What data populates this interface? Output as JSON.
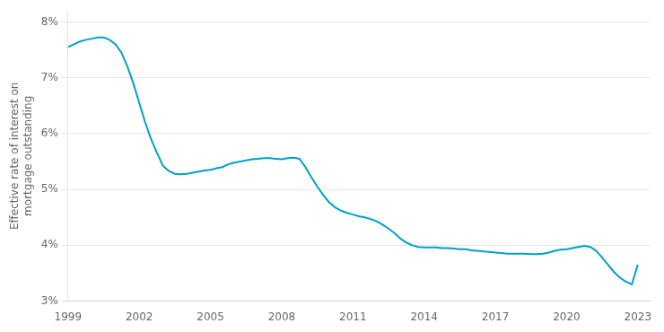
{
  "chart_data": {
    "type": "line",
    "ylabel": "Effective rate of interest on\nmortgage outstanding",
    "x": [
      1999.0,
      1999.25,
      1999.5,
      1999.75,
      2000.0,
      2000.25,
      2000.5,
      2000.75,
      2001.0,
      2001.25,
      2001.5,
      2001.75,
      2002.0,
      2002.25,
      2002.5,
      2002.75,
      2003.0,
      2003.25,
      2003.5,
      2003.75,
      2004.0,
      2004.25,
      2004.5,
      2004.75,
      2005.0,
      2005.25,
      2005.5,
      2005.75,
      2006.0,
      2006.25,
      2006.5,
      2006.75,
      2007.0,
      2007.25,
      2007.5,
      2007.75,
      2008.0,
      2008.25,
      2008.5,
      2008.75,
      2009.0,
      2009.25,
      2009.5,
      2009.75,
      2010.0,
      2010.25,
      2010.5,
      2010.75,
      2011.0,
      2011.25,
      2011.5,
      2011.75,
      2012.0,
      2012.25,
      2012.5,
      2012.75,
      2013.0,
      2013.25,
      2013.5,
      2013.75,
      2014.0,
      2014.25,
      2014.5,
      2014.75,
      2015.0,
      2015.25,
      2015.5,
      2015.75,
      2016.0,
      2016.25,
      2016.5,
      2016.75,
      2017.0,
      2017.25,
      2017.5,
      2017.75,
      2018.0,
      2018.25,
      2018.5,
      2018.75,
      2019.0,
      2019.25,
      2019.5,
      2019.75,
      2020.0,
      2020.25,
      2020.5,
      2020.75,
      2021.0,
      2021.25,
      2021.5,
      2021.75,
      2022.0,
      2022.25,
      2022.5,
      2022.75,
      2023.0
    ],
    "values": [
      7.55,
      7.6,
      7.65,
      7.68,
      7.7,
      7.72,
      7.72,
      7.68,
      7.6,
      7.45,
      7.2,
      6.9,
      6.55,
      6.2,
      5.9,
      5.65,
      5.42,
      5.33,
      5.28,
      5.27,
      5.28,
      5.3,
      5.32,
      5.34,
      5.35,
      5.38,
      5.4,
      5.45,
      5.48,
      5.5,
      5.52,
      5.54,
      5.55,
      5.56,
      5.56,
      5.55,
      5.54,
      5.56,
      5.57,
      5.55,
      5.4,
      5.22,
      5.05,
      4.9,
      4.77,
      4.68,
      4.62,
      4.58,
      4.55,
      4.52,
      4.5,
      4.47,
      4.43,
      4.37,
      4.3,
      4.22,
      4.12,
      4.05,
      4.0,
      3.97,
      3.96,
      3.96,
      3.96,
      3.95,
      3.95,
      3.94,
      3.93,
      3.93,
      3.91,
      3.9,
      3.89,
      3.88,
      3.87,
      3.86,
      3.85,
      3.85,
      3.85,
      3.85,
      3.84,
      3.84,
      3.85,
      3.87,
      3.9,
      3.92,
      3.93,
      3.95,
      3.97,
      3.99,
      3.97,
      3.9,
      3.78,
      3.65,
      3.52,
      3.42,
      3.35,
      3.3,
      3.65
    ],
    "color": "#00a0c6",
    "xlim": [
      1999,
      2023.5
    ],
    "xticks": [
      1999,
      2002,
      2005,
      2008,
      2011,
      2014,
      2017,
      2020,
      2023
    ],
    "ylim": [
      3.0,
      8.2
    ],
    "yticks": [
      {
        "value": 3,
        "label": "3%"
      },
      {
        "value": 4,
        "label": "4%"
      },
      {
        "value": 5,
        "label": "5%"
      },
      {
        "value": 6,
        "label": "6%"
      },
      {
        "value": 7,
        "label": "7%"
      },
      {
        "value": 8,
        "label": "8%"
      }
    ],
    "grid": "y"
  }
}
